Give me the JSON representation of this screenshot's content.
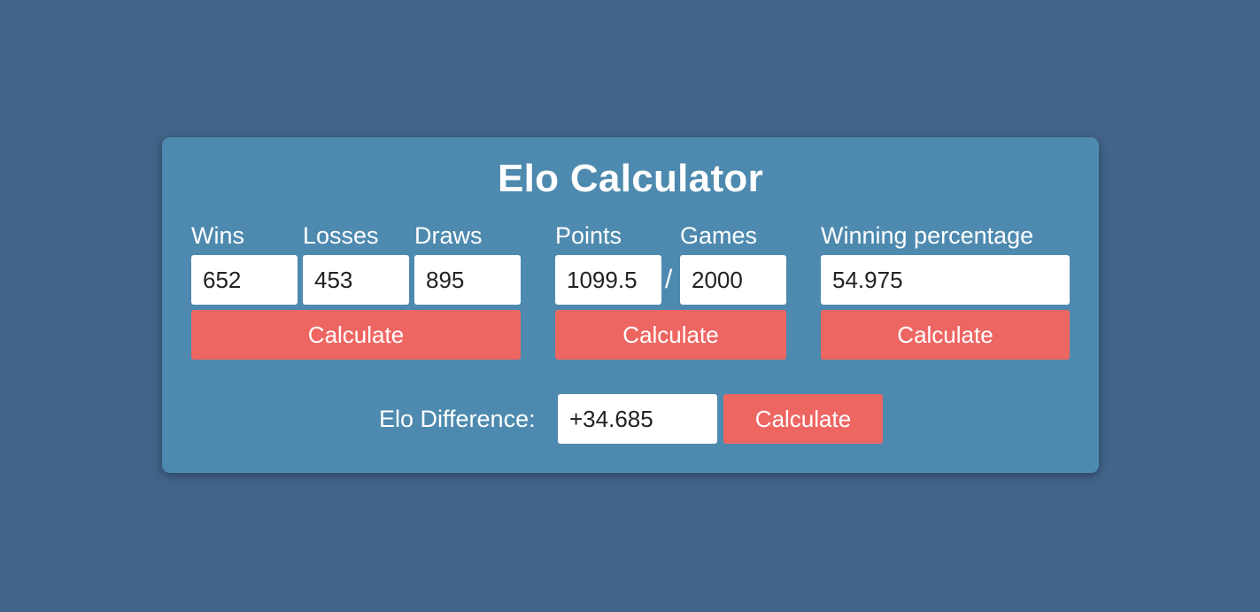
{
  "title": "Elo Calculator",
  "wld": {
    "wins_label": "Wins",
    "losses_label": "Losses",
    "draws_label": "Draws",
    "wins_value": "652",
    "losses_value": "453",
    "draws_value": "895",
    "button_label": "Calculate"
  },
  "points_games": {
    "points_label": "Points",
    "games_label": "Games",
    "points_value": "1099.5",
    "separator": "/",
    "games_value": "2000",
    "button_label": "Calculate"
  },
  "percentage": {
    "label": "Winning percentage",
    "value": "54.975",
    "button_label": "Calculate"
  },
  "elo_difference": {
    "label": "Elo Difference:",
    "value": "+34.685",
    "button_label": "Calculate"
  },
  "colors": {
    "page_background": "#426489",
    "card_background": "#4e8aaf",
    "button": "#ee6662",
    "text": "#ffffff"
  }
}
